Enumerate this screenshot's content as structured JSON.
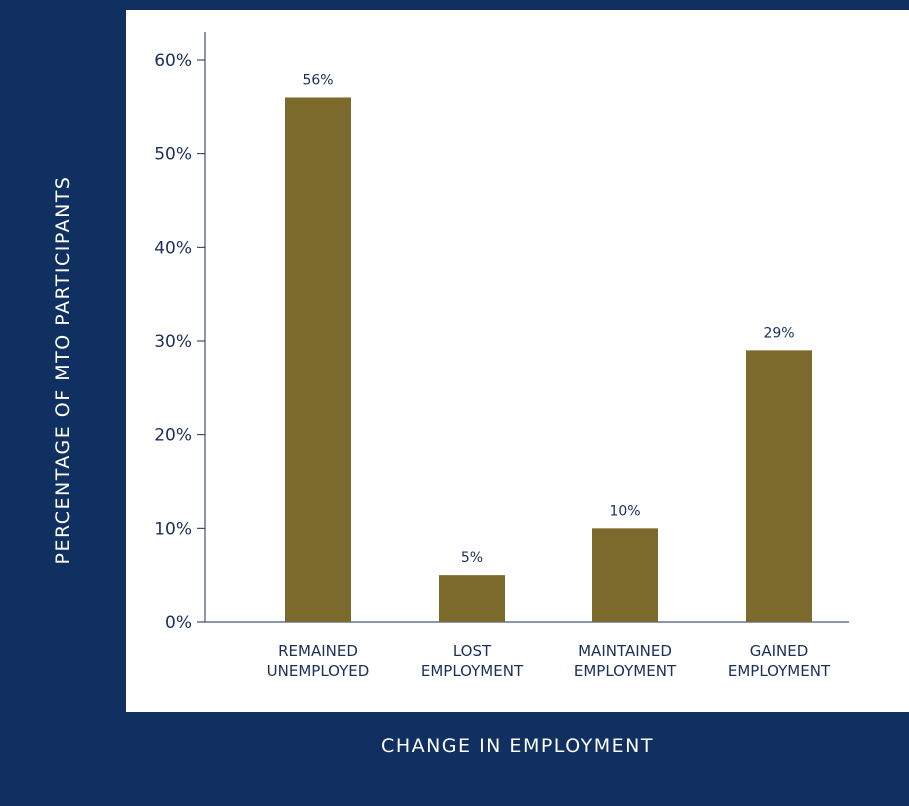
{
  "chart_data": {
    "type": "bar",
    "categories": [
      [
        "REMAINED",
        "UNEMPLOYED"
      ],
      [
        "LOST",
        "EMPLOYMENT"
      ],
      [
        "MAINTAINED",
        "EMPLOYMENT"
      ],
      [
        "GAINED",
        "EMPLOYMENT"
      ]
    ],
    "values": [
      56,
      5,
      10,
      29
    ],
    "data_labels": [
      "56%",
      "5%",
      "10%",
      "29%"
    ],
    "xlabel": "CHANGE IN EMPLOYMENT",
    "ylabel": "PERCENTAGE OF MTO PARTICIPANTS",
    "ylim": [
      0,
      60
    ],
    "yticks": [
      0,
      10,
      20,
      30,
      40,
      50,
      60
    ],
    "ytick_labels": [
      "0%",
      "10%",
      "20%",
      "30%",
      "40%",
      "50%",
      "60%"
    ],
    "grid": false,
    "bar_color": "#7b6a2c",
    "axis_color": "#1a2f5a",
    "background_color": "#0f3060"
  }
}
